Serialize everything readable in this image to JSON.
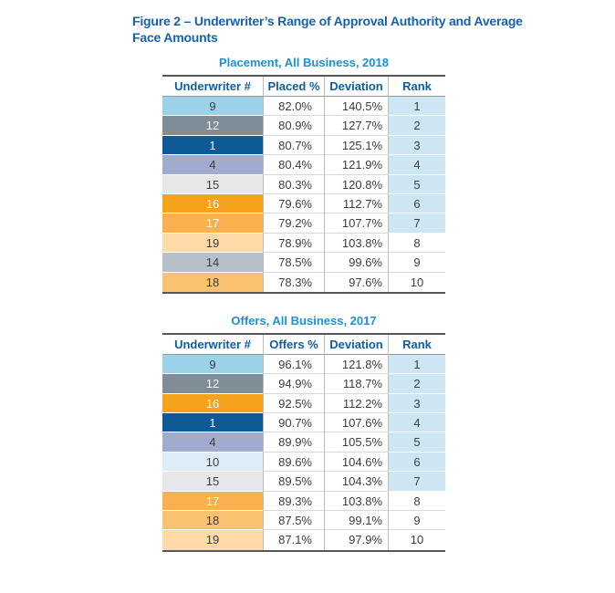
{
  "figure_title": "Figure 2 – Underwriter’s Range of Approval Authority and Average Face Amounts",
  "colors": {
    "figure_title_text": "#1661ab",
    "table_title_text": "#1b91cf",
    "header_text": "#0f5e9c",
    "body_text": "#3d3d3f",
    "rank_highlight": "#cde6f4",
    "border_dark": "#56575b",
    "row_line": "#d8d9da",
    "column_divider": "#b9bcbf"
  },
  "tables": [
    {
      "title": "Placement, All Business, 2018",
      "columns": [
        "Underwriter #",
        "Placed %",
        "Deviation",
        "Rank"
      ],
      "rows": [
        {
          "cells": [
            "9",
            "82.0%",
            "140.5%",
            "1"
          ],
          "bg": "#9cd1ea",
          "fg": "dark",
          "rank_shaded": true
        },
        {
          "cells": [
            "12",
            "80.9%",
            "127.7%",
            "2"
          ],
          "bg": "#7e8d97",
          "fg": "white",
          "rank_shaded": true
        },
        {
          "cells": [
            "1",
            "80.7%",
            "125.1%",
            "3"
          ],
          "bg": "#0e5a94",
          "fg": "white",
          "rank_shaded": true
        },
        {
          "cells": [
            "4",
            "80.4%",
            "121.9%",
            "4"
          ],
          "bg": "#9faccf",
          "fg": "dark",
          "rank_shaded": true
        },
        {
          "cells": [
            "15",
            "80.3%",
            "120.8%",
            "5"
          ],
          "bg": "#e6e7e8",
          "fg": "dark",
          "rank_shaded": true
        },
        {
          "cells": [
            "16",
            "79.6%",
            "112.7%",
            "6"
          ],
          "bg": "#f6a21d",
          "fg": "white",
          "rank_shaded": true
        },
        {
          "cells": [
            "17",
            "79.2%",
            "107.7%",
            "7"
          ],
          "bg": "#f9b04d",
          "fg": "white",
          "rank_shaded": true
        },
        {
          "cells": [
            "19",
            "78.9%",
            "103.8%",
            "8"
          ],
          "bg": "#fcd9a6",
          "fg": "dark",
          "rank_shaded": false
        },
        {
          "cells": [
            "14",
            "78.5%",
            "99.6%",
            "9"
          ],
          "bg": "#b7bfc9",
          "fg": "dark",
          "rank_shaded": false
        },
        {
          "cells": [
            "18",
            "78.3%",
            "97.6%",
            "10"
          ],
          "bg": "#fac26e",
          "fg": "dark",
          "rank_shaded": false
        }
      ]
    },
    {
      "title": "Offers, All Business, 2017",
      "columns": [
        "Underwriter #",
        "Offers %",
        "Deviation",
        "Rank"
      ],
      "rows": [
        {
          "cells": [
            "9",
            "96.1%",
            "121.8%",
            "1"
          ],
          "bg": "#9cd1ea",
          "fg": "dark",
          "rank_shaded": true
        },
        {
          "cells": [
            "12",
            "94.9%",
            "118.7%",
            "2"
          ],
          "bg": "#7e8d97",
          "fg": "white",
          "rank_shaded": true
        },
        {
          "cells": [
            "16",
            "92.5%",
            "112.2%",
            "3"
          ],
          "bg": "#f6a21d",
          "fg": "white",
          "rank_shaded": true
        },
        {
          "cells": [
            "1",
            "90.7%",
            "107.6%",
            "4"
          ],
          "bg": "#0e5a94",
          "fg": "white",
          "rank_shaded": true
        },
        {
          "cells": [
            "4",
            "89.9%",
            "105.5%",
            "5"
          ],
          "bg": "#9faccf",
          "fg": "dark",
          "rank_shaded": true
        },
        {
          "cells": [
            "10",
            "89.6%",
            "104.6%",
            "6"
          ],
          "bg": "#ddedf8",
          "fg": "dark",
          "rank_shaded": true
        },
        {
          "cells": [
            "15",
            "89.5%",
            "104.3%",
            "7"
          ],
          "bg": "#e6e7e8",
          "fg": "dark",
          "rank_shaded": true
        },
        {
          "cells": [
            "17",
            "89.3%",
            "103.8%",
            "8"
          ],
          "bg": "#f9b04d",
          "fg": "white",
          "rank_shaded": false
        },
        {
          "cells": [
            "18",
            "87.5%",
            "99.1%",
            "9"
          ],
          "bg": "#fac26e",
          "fg": "dark",
          "rank_shaded": false
        },
        {
          "cells": [
            "19",
            "87.1%",
            "97.9%",
            "10"
          ],
          "bg": "#fcd9a6",
          "fg": "dark",
          "rank_shaded": false
        }
      ]
    }
  ]
}
